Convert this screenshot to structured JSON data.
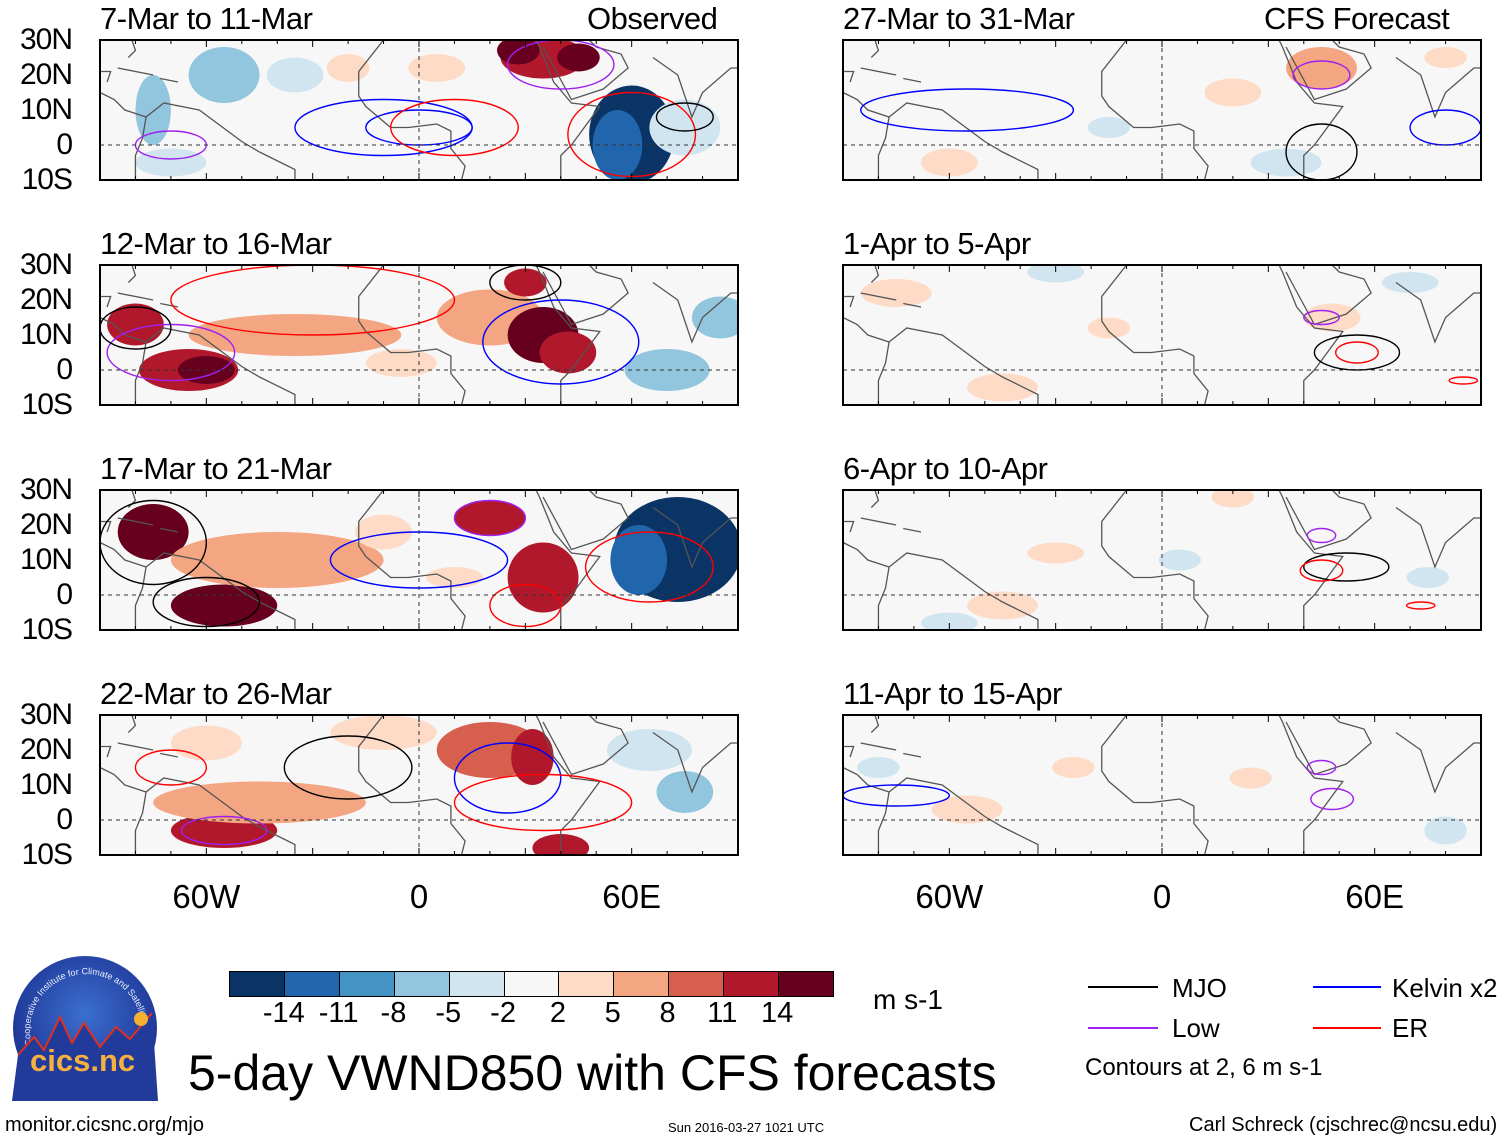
{
  "panels": {
    "left_header": "Observed",
    "right_header": "CFS Forecast",
    "left_titles": [
      "7-Mar to 11-Mar",
      "12-Mar to 16-Mar",
      "17-Mar to 21-Mar",
      "22-Mar to 26-Mar"
    ],
    "right_titles": [
      "27-Mar to 31-Mar",
      "1-Apr to 5-Apr",
      "6-Apr to 10-Apr",
      "11-Apr to 15-Apr"
    ],
    "lat_labels": [
      "30N",
      "20N",
      "10N",
      "0",
      "10S"
    ],
    "lon_labels": [
      "60W",
      "0",
      "60E"
    ],
    "lon_range": [
      -90,
      90
    ],
    "lat_range": [
      -10,
      30
    ]
  },
  "colorbar": {
    "colors": [
      "#0b3466",
      "#2166ac",
      "#4393c3",
      "#92c5de",
      "#d1e5f0",
      "#f7f7f7",
      "#fddbc7",
      "#f4a582",
      "#d6604d",
      "#b2182b",
      "#67001f"
    ],
    "labels": [
      "-14",
      "-11",
      "-8",
      "-5",
      "-2",
      "2",
      "5",
      "8",
      "11",
      "14"
    ],
    "units": "m s-1"
  },
  "legend": {
    "items": [
      {
        "label": "MJO",
        "color": "#000000"
      },
      {
        "label": "Kelvin x2",
        "color": "#0000ff"
      },
      {
        "label": "Low",
        "color": "#a020f0"
      },
      {
        "label": "ER",
        "color": "#ff0000"
      }
    ],
    "note": "Contours at 2, 6 m s-1"
  },
  "title": "5-day VWND850 with CFS forecasts",
  "logo": {
    "text": "cics.nc",
    "ring_text": "Cooperative Institute for Climate and Satellites"
  },
  "footer": {
    "url": "monitor.cicsnc.org/mjo",
    "timestamp": "Sun 2016-03-27 1021 UTC",
    "author": "Carl Schreck (cjschrec@ncsu.edu)"
  }
}
